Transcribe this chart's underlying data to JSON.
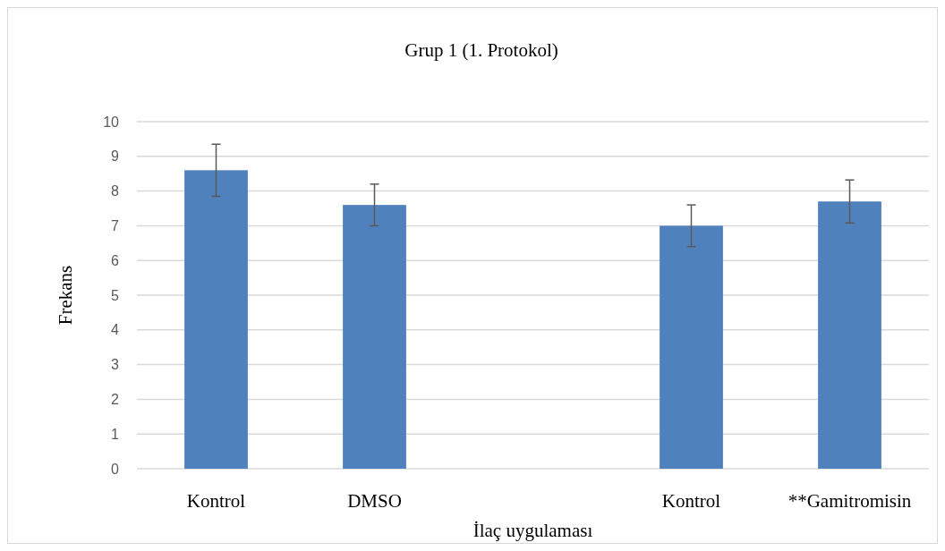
{
  "chart_data": {
    "type": "bar",
    "title": "Grup 1 (1. Protokol)",
    "xlabel": "İlaç uygulaması",
    "ylabel": "Frekans",
    "categories": [
      "Kontrol",
      "DMSO",
      null,
      "Kontrol",
      "**Gamitromisin"
    ],
    "values": [
      8.6,
      7.6,
      null,
      7.0,
      7.7
    ],
    "errors": [
      0.75,
      0.6,
      null,
      0.6,
      0.62
    ],
    "color": "#4f81bd",
    "ylim": [
      0,
      10
    ],
    "yticks": [
      0,
      1,
      2,
      3,
      4,
      5,
      6,
      7,
      8,
      9,
      10
    ],
    "grid": "y"
  }
}
